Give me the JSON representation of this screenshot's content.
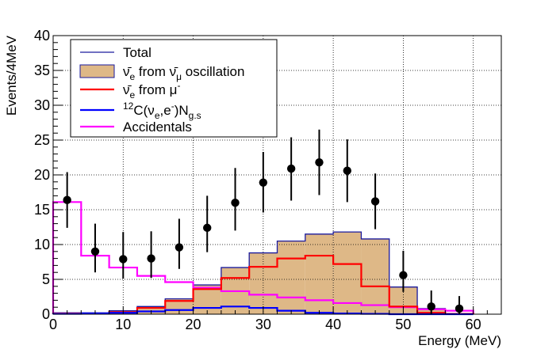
{
  "chart_data": {
    "type": "histogram",
    "title": "",
    "xlabel": "Energy (MeV)",
    "ylabel": "Events/4MeV",
    "xlim": [
      0,
      64
    ],
    "ylim": [
      0,
      40
    ],
    "x_ticks": [
      0,
      10,
      20,
      30,
      40,
      50,
      60
    ],
    "y_ticks": [
      0,
      5,
      10,
      15,
      20,
      25,
      30,
      35,
      40
    ],
    "grid": true,
    "bin_edges": [
      0,
      4,
      8,
      12,
      16,
      20,
      24,
      28,
      32,
      36,
      40,
      44,
      48,
      52,
      56,
      60
    ],
    "legend": {
      "position": "top-left",
      "entries": [
        {
          "key": "total",
          "label": "Total",
          "style": "line",
          "color": "#1a1a9e"
        },
        {
          "key": "oscillation",
          "label": "ν̄e from ν̄μ oscillation",
          "style": "fill",
          "color": "#deb887",
          "border": "#1a1a9e",
          "rich": [
            {
              "t": "ν̄"
            },
            {
              "t": "e",
              "sub": true
            },
            {
              "t": " from "
            },
            {
              "t": "ν̄"
            },
            {
              "t": "μ",
              "sub": true
            },
            {
              "t": " oscillation"
            }
          ]
        },
        {
          "key": "mu_minus",
          "label": "ν̄e from μ-",
          "style": "line",
          "color": "#ff0000",
          "rich": [
            {
              "t": "ν̄"
            },
            {
              "t": "e",
              "sub": true
            },
            {
              "t": " from μ"
            },
            {
              "t": "-",
              "sup": true
            }
          ]
        },
        {
          "key": "carbon",
          "label": "12C(νe,e-)Ng.s",
          "style": "line",
          "color": "#0000ff",
          "rich": [
            {
              "t": "12",
              "sup": true
            },
            {
              "t": "C(ν"
            },
            {
              "t": "e",
              "sub": true
            },
            {
              "t": ",e"
            },
            {
              "t": "-",
              "sup": true
            },
            {
              "t": ")N"
            },
            {
              "t": "g.s",
              "sub": true
            }
          ]
        },
        {
          "key": "accidentals",
          "label": "Accidentals",
          "style": "line",
          "color": "#ff00ff"
        }
      ]
    },
    "series": [
      {
        "name": "Total",
        "key": "total",
        "type": "step-fill",
        "color": "#1a1a9e",
        "fill": "#deb887",
        "values": [
          0.2,
          0.2,
          0.5,
          1.1,
          2.2,
          4.2,
          6.7,
          8.8,
          10.5,
          11.5,
          11.8,
          10.8,
          3.9,
          0.8,
          0.1
        ]
      },
      {
        "name": "ν̄e from μ-",
        "key": "mu_minus",
        "type": "step",
        "color": "#ff0000",
        "values": [
          0.1,
          0.1,
          0.3,
          0.9,
          1.9,
          3.6,
          5.2,
          6.8,
          8.0,
          8.4,
          7.2,
          4.0,
          1.1,
          0.2,
          0.05
        ]
      },
      {
        "name": "12C(νe,e-)Ng.s",
        "key": "carbon",
        "type": "step",
        "color": "#0000ff",
        "values": [
          0.05,
          0.1,
          0.2,
          0.4,
          0.6,
          0.9,
          1.1,
          0.9,
          0.5,
          0.2,
          0.1,
          0.05,
          0.0,
          0.0,
          0.0
        ]
      },
      {
        "name": "Accidentals",
        "key": "accidentals",
        "type": "step",
        "color": "#ff00ff",
        "values": [
          16.1,
          8.4,
          6.7,
          5.5,
          4.6,
          3.8,
          3.3,
          2.8,
          2.4,
          2.0,
          1.6,
          1.3,
          1.0,
          0.7,
          0.5
        ]
      },
      {
        "name": "Data",
        "key": "data",
        "type": "points-errorbars",
        "color": "#000000",
        "x": [
          2,
          6,
          10,
          14,
          18,
          22,
          26,
          30,
          34,
          38,
          42,
          46,
          50,
          54,
          58
        ],
        "y": [
          16.4,
          9.0,
          7.9,
          8.0,
          9.6,
          12.4,
          16.0,
          18.9,
          20.9,
          21.8,
          20.6,
          16.2,
          5.6,
          1.1,
          0.8
        ],
        "yerr_low": [
          4.0,
          3.0,
          2.8,
          2.8,
          3.1,
          3.5,
          4.0,
          4.3,
          4.6,
          4.7,
          4.5,
          4.0,
          2.4,
          1.1,
          0.8
        ],
        "yerr_high": [
          4.0,
          4.0,
          3.9,
          3.9,
          4.1,
          4.6,
          5.0,
          4.4,
          4.5,
          4.7,
          4.5,
          4.0,
          3.5,
          2.3,
          1.8
        ]
      }
    ]
  }
}
